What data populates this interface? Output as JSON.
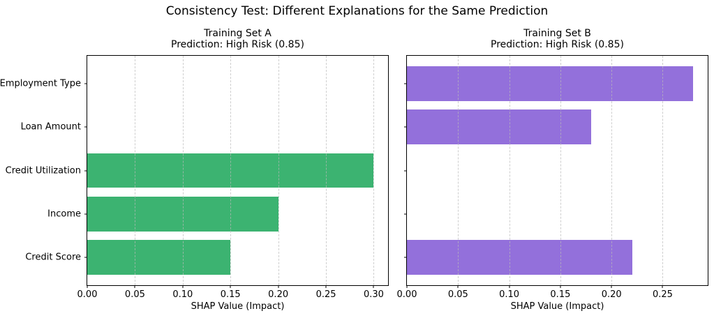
{
  "figure": {
    "suptitle": "Consistency Test: Different Explanations for the Same Prediction"
  },
  "chart_data": [
    {
      "type": "bar",
      "orientation": "horizontal",
      "title": "Training Set A",
      "subtitle": "Prediction: High Risk (0.85)",
      "xlabel": "SHAP Value (Impact)",
      "categories": [
        "Employment Type",
        "Loan Amount",
        "Credit Utilization",
        "Income",
        "Credit Score"
      ],
      "values": [
        0.0,
        0.0,
        0.3,
        0.2,
        0.15
      ],
      "bar_color": "#3cb371",
      "xticks": [
        0.0,
        0.05,
        0.1,
        0.15,
        0.2,
        0.25,
        0.3
      ],
      "xlim": [
        0,
        0.315
      ],
      "grid": "vertical-dashed",
      "legend": "none"
    },
    {
      "type": "bar",
      "orientation": "horizontal",
      "title": "Training Set B",
      "subtitle": "Prediction: High Risk (0.85)",
      "xlabel": "SHAP Value (Impact)",
      "categories": [
        "Employment Type",
        "Loan Amount",
        "Credit Utilization",
        "Income",
        "Credit Score"
      ],
      "values": [
        0.28,
        0.18,
        0.0,
        0.0,
        0.22
      ],
      "bar_color": "#9370db",
      "xticks": [
        0.0,
        0.05,
        0.1,
        0.15,
        0.2,
        0.25
      ],
      "xlim": [
        0,
        0.294
      ],
      "grid": "vertical-dashed",
      "legend": "none"
    }
  ]
}
